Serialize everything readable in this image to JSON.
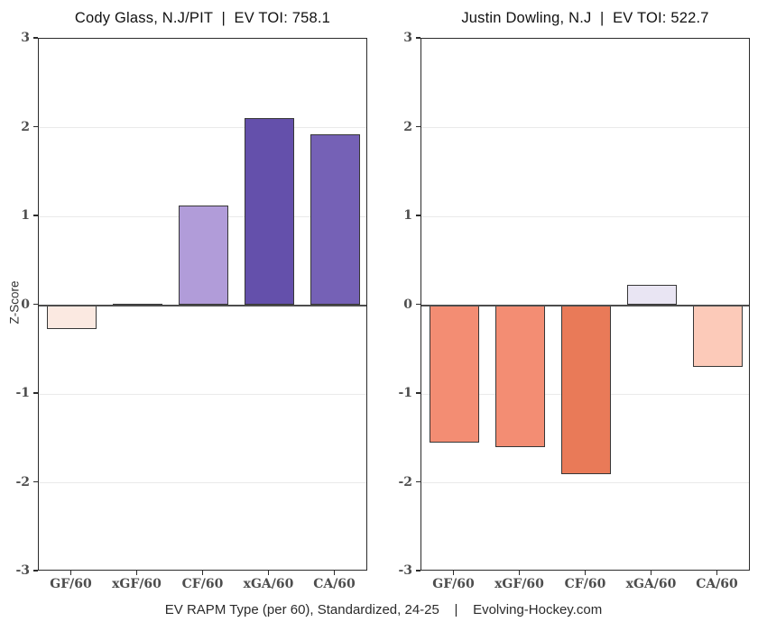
{
  "page": {
    "caption": "EV RAPM Type (per 60), Standardized, 24-25    |    Evolving-Hockey.com"
  },
  "chart_data": [
    {
      "type": "bar",
      "title": "Cody Glass, N.J/PIT  |  EV TOI: 758.1",
      "player": "Cody Glass",
      "team": "N.J/PIT",
      "ev_toi": 758.1,
      "ylabel": "Z-Score",
      "categories": [
        "GF/60",
        "xGF/60",
        "CF/60",
        "xGA/60",
        "CA/60"
      ],
      "values": [
        -0.27,
        0.02,
        1.12,
        2.11,
        1.92
      ],
      "bar_colors": [
        "#fbe9e1",
        "#4d4d4d",
        "#b19cd9",
        "#6450ab",
        "#7561b6"
      ],
      "ylim": [
        -3,
        3
      ],
      "yticks": [
        3,
        2,
        1,
        0,
        -1,
        -2,
        -3
      ],
      "grid": true,
      "legend": "none"
    },
    {
      "type": "bar",
      "title": "Justin Dowling, N.J  |  EV TOI: 522.7",
      "player": "Justin Dowling",
      "team": "N.J",
      "ev_toi": 522.7,
      "ylabel": "",
      "categories": [
        "GF/60",
        "xGF/60",
        "CF/60",
        "xGA/60",
        "CA/60"
      ],
      "values": [
        -1.55,
        -1.6,
        -1.9,
        0.23,
        -0.7
      ],
      "bar_colors": [
        "#f38d73",
        "#f38d73",
        "#e97a58",
        "#e9e5f3",
        "#fccab9"
      ],
      "ylim": [
        -3,
        3
      ],
      "yticks": [
        3,
        2,
        1,
        0,
        -1,
        -2,
        -3
      ],
      "grid": true,
      "legend": "none"
    }
  ],
  "style": {
    "gridline_color": "#eaeaea",
    "zero_line_color": "#4d4d4d",
    "axis_color": "#2b2b2b",
    "tick_label_color": "#4d4d4d",
    "title_color": "#111111",
    "background": "#ffffff"
  }
}
